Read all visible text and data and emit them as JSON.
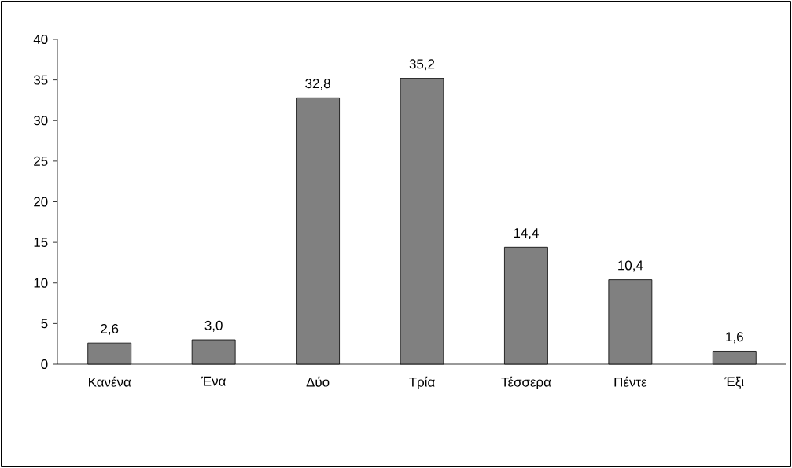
{
  "chart_data": {
    "type": "bar",
    "categories": [
      "Κανένα",
      "Ένα",
      "Δύο",
      "Τρία",
      "Τέσσερα",
      "Πέντε",
      "Έξι"
    ],
    "values": [
      2.6,
      3.0,
      32.8,
      35.2,
      14.4,
      10.4,
      1.6
    ],
    "value_labels": [
      "2,6",
      "3,0",
      "32,8",
      "35,2",
      "14,4",
      "10,4",
      "1,6"
    ],
    "color": "#808080",
    "ylim": [
      0,
      40
    ],
    "yticks": [
      0,
      5,
      10,
      15,
      20,
      25,
      30,
      35,
      40
    ]
  }
}
